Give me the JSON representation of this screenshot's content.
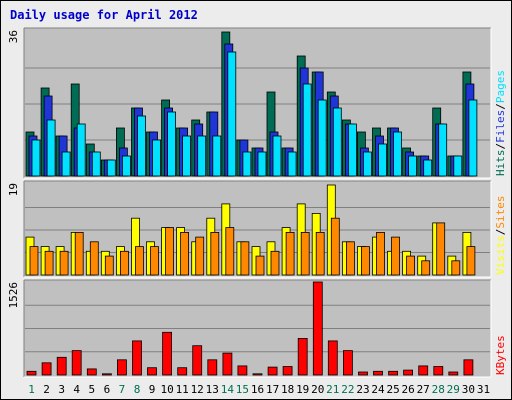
{
  "chart_data": {
    "type": "bar",
    "title": "Daily usage for April 2012",
    "days": [
      "1",
      "2",
      "3",
      "4",
      "5",
      "6",
      "7",
      "8",
      "9",
      "10",
      "11",
      "12",
      "13",
      "14",
      "15",
      "16",
      "17",
      "18",
      "19",
      "20",
      "21",
      "22",
      "23",
      "24",
      "25",
      "26",
      "27",
      "28",
      "29",
      "30",
      "31"
    ],
    "weekend_days": [
      "1",
      "7",
      "8",
      "14",
      "15",
      "21",
      "22",
      "28",
      "29"
    ],
    "colors": {
      "hits": "#006c54",
      "files": "#2035d8",
      "pages": "#00e0ff",
      "visits": "#ffff00",
      "sites": "#ff8800",
      "kbytes": "#ff0000",
      "weekend_label": "#007050",
      "weekday_label": "#000000",
      "title": "#0000cc",
      "panel_bg": "#c0c0c0"
    },
    "panels": [
      {
        "id": "hits_files_pages",
        "max_label": "36",
        "ylim": [
          0,
          36
        ],
        "legend": [
          {
            "text": "Hits",
            "color": "#006c54"
          },
          {
            "text": "/",
            "color": "#000000"
          },
          {
            "text": "Files",
            "color": "#2035d8"
          },
          {
            "text": "/",
            "color": "#000000"
          },
          {
            "text": "Pages",
            "color": "#00e0ff"
          }
        ],
        "series": [
          {
            "name": "Hits",
            "values": [
              11,
              22,
              10,
              23,
              8,
              4,
              12,
              17,
              11,
              19,
              12,
              14,
              16,
              36,
              9,
              7,
              21,
              7,
              30,
              26,
              21,
              14,
              11,
              12,
              12,
              7,
              5,
              17,
              5,
              26,
              0
            ]
          },
          {
            "name": "Files",
            "values": [
              10,
              20,
              10,
              12,
              6,
              4,
              7,
              17,
              11,
              17,
              12,
              13,
              16,
              33,
              9,
              7,
              11,
              7,
              27,
              26,
              20,
              13,
              7,
              10,
              12,
              6,
              5,
              13,
              5,
              23,
              0
            ]
          },
          {
            "name": "Pages",
            "values": [
              9,
              14,
              6,
              13,
              6,
              4,
              5,
              15,
              9,
              16,
              10,
              10,
              10,
              31,
              6,
              6,
              10,
              6,
              23,
              19,
              17,
              13,
              6,
              8,
              11,
              5,
              4,
              13,
              5,
              19,
              0
            ]
          }
        ]
      },
      {
        "id": "visits_sites",
        "max_label": "19",
        "ylim": [
          0,
          19
        ],
        "legend": [
          {
            "text": "Visits",
            "color": "#ffff00"
          },
          {
            "text": "/",
            "color": "#000000"
          },
          {
            "text": "Sites",
            "color": "#ff8800"
          }
        ],
        "series": [
          {
            "name": "Visits",
            "values": [
              8,
              6,
              6,
              9,
              5,
              5,
              6,
              12,
              7,
              10,
              10,
              7,
              12,
              15,
              7,
              6,
              7,
              10,
              15,
              13,
              19,
              7,
              6,
              8,
              5,
              5,
              4,
              11,
              4,
              9,
              0
            ]
          },
          {
            "name": "Sites",
            "values": [
              6,
              5,
              5,
              9,
              7,
              4,
              5,
              6,
              6,
              10,
              9,
              8,
              9,
              10,
              7,
              4,
              5,
              9,
              9,
              9,
              12,
              7,
              6,
              9,
              8,
              4,
              3,
              11,
              3,
              6,
              0
            ]
          }
        ]
      },
      {
        "id": "kbytes",
        "max_label": "1526",
        "ylim": [
          0,
          1526
        ],
        "legend": [
          {
            "text": "KBytes",
            "color": "#ff0000"
          }
        ],
        "series": [
          {
            "name": "KBytes",
            "values": [
              60,
              200,
              290,
              400,
              100,
              20,
              250,
              560,
              120,
              700,
              120,
              480,
              250,
              360,
              150,
              20,
              130,
              140,
              600,
              1526,
              560,
              400,
              50,
              60,
              60,
              80,
              150,
              140,
              50,
              250,
              0
            ]
          }
        ]
      }
    ]
  }
}
